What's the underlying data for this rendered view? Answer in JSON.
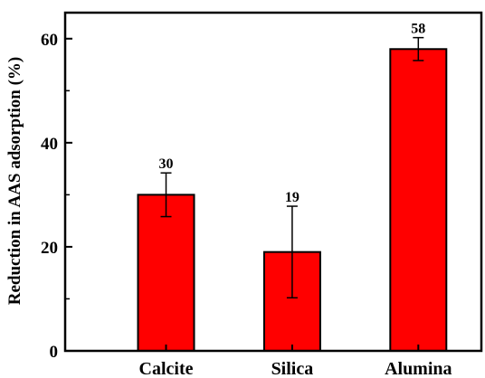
{
  "chart_data": {
    "type": "bar",
    "title": "",
    "xlabel": "",
    "ylabel": "Reduction in AAS adsorption (%)",
    "categories": [
      "Calcite",
      "Silica",
      "Alumina"
    ],
    "values": [
      30,
      19,
      58
    ],
    "error_high": [
      34.2,
      27.8,
      60.2
    ],
    "error_low": [
      25.8,
      10.2,
      55.8
    ],
    "data_labels": [
      "30",
      "19",
      "58"
    ],
    "ylim": [
      0,
      65
    ],
    "yticks": [
      0,
      20,
      40,
      60
    ],
    "yticks_labels": [
      "0",
      "20",
      "40",
      "60"
    ],
    "grid": false,
    "legend": "none",
    "bar_color": "#ff0000",
    "edge_color": "#000000"
  }
}
